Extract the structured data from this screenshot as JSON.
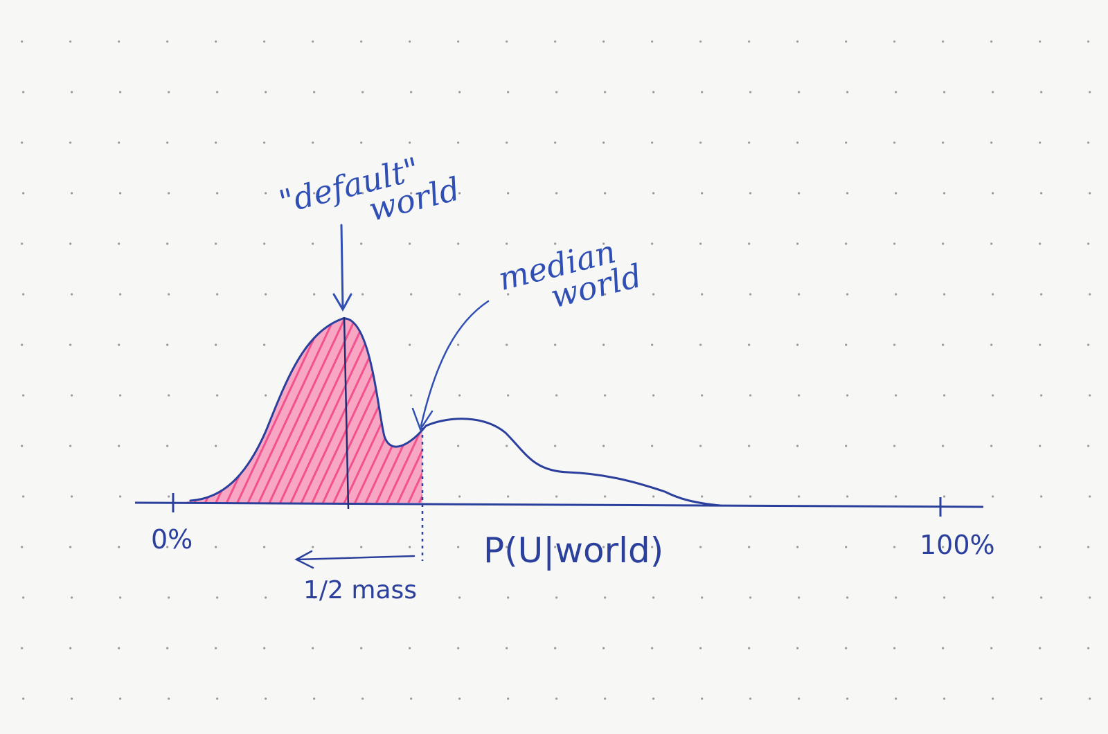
{
  "annotations": {
    "default_world": [
      "\"default\"",
      "world"
    ],
    "median_world": [
      "median",
      "world"
    ],
    "half_mass": "1/2 mass"
  },
  "axis": {
    "left_label": "0%",
    "right_label": "100%",
    "title": "P(U|world)"
  },
  "colors": {
    "ink": "#2b3f9c",
    "annotation_ink": "#2f4fb5",
    "shading": "#f0347a",
    "paper": "#f7f7f5",
    "dot_grid": "#9a9a9a"
  }
}
